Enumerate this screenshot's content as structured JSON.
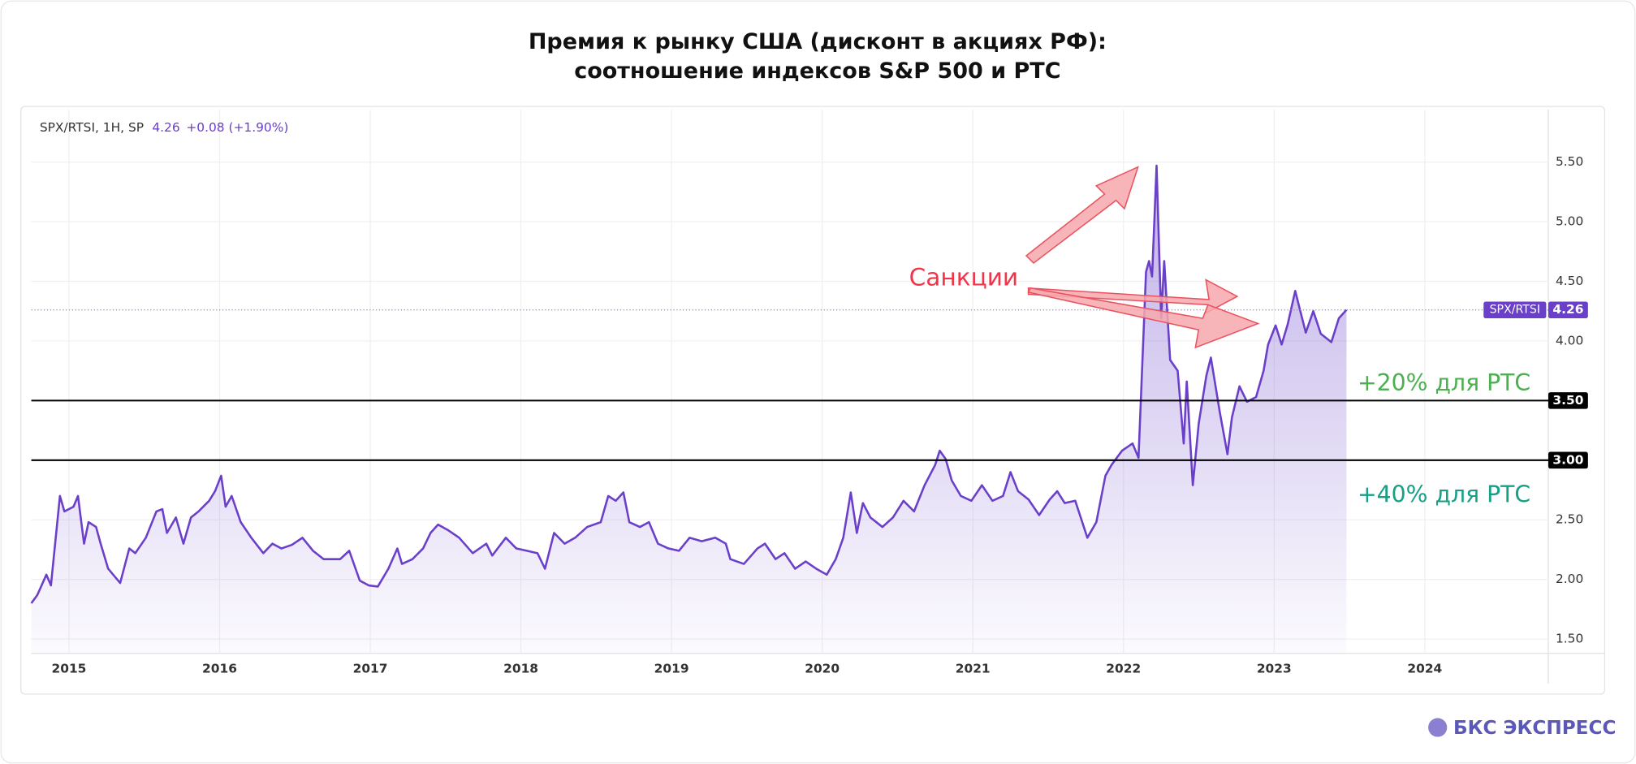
{
  "chart_data": {
    "type": "line",
    "title": [
      "Премия к рынку США (дисконт в акциях РФ):",
      "соотношение индексов S&P 500 и РТС"
    ],
    "header": {
      "symbol": "SPX/RTSI, 1H, SP",
      "value": 4.26,
      "change": "+0.08 (+1.90%)"
    },
    "x": [
      2014.75,
      2014.79,
      2014.85,
      2014.88,
      2014.94,
      2014.97,
      2015.03,
      2015.06,
      2015.1,
      2015.13,
      2015.18,
      2015.21,
      2015.26,
      2015.34,
      2015.4,
      2015.44,
      2015.51,
      2015.58,
      2015.62,
      2015.65,
      2015.71,
      2015.76,
      2015.81,
      2015.86,
      2015.93,
      2015.97,
      2016.01,
      2016.04,
      2016.08,
      2016.14,
      2016.21,
      2016.29,
      2016.35,
      2016.41,
      2016.48,
      2016.55,
      2016.62,
      2016.69,
      2016.8,
      2016.86,
      2016.93,
      2016.99,
      2017.05,
      2017.12,
      2017.18,
      2017.21,
      2017.28,
      2017.35,
      2017.4,
      2017.45,
      2017.52,
      2017.59,
      2017.68,
      2017.77,
      2017.81,
      2017.9,
      2017.97,
      2018.04,
      2018.11,
      2018.16,
      2018.22,
      2018.29,
      2018.36,
      2018.44,
      2018.53,
      2018.58,
      2018.63,
      2018.68,
      2018.72,
      2018.79,
      2018.85,
      2018.91,
      2018.98,
      2019.05,
      2019.12,
      2019.2,
      2019.29,
      2019.36,
      2019.39,
      2019.48,
      2019.57,
      2019.62,
      2019.69,
      2019.75,
      2019.82,
      2019.89,
      2019.96,
      2020.03,
      2020.09,
      2020.14,
      2020.19,
      2020.23,
      2020.27,
      2020.32,
      2020.4,
      2020.47,
      2020.54,
      2020.61,
      2020.68,
      2020.75,
      2020.78,
      2020.82,
      2020.86,
      2020.92,
      2020.99,
      2021.06,
      2021.13,
      2021.2,
      2021.25,
      2021.3,
      2021.37,
      2021.44,
      2021.51,
      2021.56,
      2021.61,
      2021.68,
      2021.76,
      2021.82,
      2021.88,
      2021.92,
      2021.99,
      2022.06,
      2022.1,
      2022.15,
      2022.17,
      2022.19,
      2022.22,
      2022.25,
      2022.27,
      2022.31,
      2022.36,
      2022.4,
      2022.42,
      2022.46,
      2022.5,
      2022.55,
      2022.58,
      2022.64,
      2022.69,
      2022.72,
      2022.77,
      2022.82,
      2022.88,
      2022.93,
      2022.96,
      2023.01,
      2023.05,
      2023.09,
      2023.14,
      2023.17,
      2023.21,
      2023.26,
      2023.31,
      2023.38,
      2023.43,
      2023.48
    ],
    "series": [
      {
        "name": "SPX/RTSI",
        "color": "#6a3fc9",
        "values": [
          1.8,
          1.87,
          2.04,
          1.95,
          2.7,
          2.57,
          2.61,
          2.7,
          2.3,
          2.48,
          2.44,
          2.3,
          2.09,
          1.97,
          2.26,
          2.22,
          2.35,
          2.57,
          2.59,
          2.39,
          2.52,
          2.3,
          2.52,
          2.57,
          2.66,
          2.74,
          2.87,
          2.61,
          2.7,
          2.48,
          2.35,
          2.22,
          2.3,
          2.26,
          2.29,
          2.35,
          2.24,
          2.17,
          2.17,
          2.24,
          1.99,
          1.95,
          1.94,
          2.09,
          2.26,
          2.13,
          2.17,
          2.26,
          2.39,
          2.46,
          2.41,
          2.35,
          2.22,
          2.3,
          2.2,
          2.35,
          2.26,
          2.24,
          2.22,
          2.09,
          2.39,
          2.3,
          2.35,
          2.44,
          2.48,
          2.7,
          2.66,
          2.73,
          2.48,
          2.44,
          2.48,
          2.3,
          2.26,
          2.24,
          2.35,
          2.32,
          2.35,
          2.3,
          2.17,
          2.13,
          2.26,
          2.3,
          2.17,
          2.22,
          2.09,
          2.15,
          2.09,
          2.04,
          2.17,
          2.35,
          2.73,
          2.39,
          2.64,
          2.52,
          2.44,
          2.52,
          2.66,
          2.57,
          2.79,
          2.96,
          3.08,
          3.01,
          2.83,
          2.7,
          2.66,
          2.79,
          2.66,
          2.7,
          2.9,
          2.74,
          2.67,
          2.54,
          2.67,
          2.74,
          2.64,
          2.66,
          2.35,
          2.48,
          2.87,
          2.96,
          3.08,
          3.14,
          3.02,
          4.58,
          4.67,
          4.54,
          5.47,
          4.19,
          4.67,
          3.84,
          3.75,
          3.14,
          3.66,
          2.79,
          3.31,
          3.71,
          3.86,
          3.4,
          3.05,
          3.36,
          3.62,
          3.49,
          3.53,
          3.75,
          3.97,
          4.13,
          3.97,
          4.14,
          4.42,
          4.27,
          4.07,
          4.25,
          4.06,
          3.99,
          4.19,
          4.26
        ]
      }
    ],
    "xlim": [
      2014.75,
      2024.82
    ],
    "xticks": [
      2015,
      2016,
      2017,
      2018,
      2019,
      2020,
      2021,
      2022,
      2023,
      2024
    ],
    "ylim": [
      1.38,
      5.94
    ],
    "yticks": [
      {
        "value": 1.5,
        "label": "1.50"
      },
      {
        "value": 2,
        "label": "2.00"
      },
      {
        "value": 2.5,
        "label": "2.50"
      },
      {
        "value": 3,
        "label": "3.00"
      },
      {
        "value": 3.5,
        "label": "3.50"
      },
      {
        "value": 4,
        "label": "4.00"
      },
      {
        "value": 4.5,
        "label": "4.50"
      },
      {
        "value": 5,
        "label": "5.00"
      },
      {
        "value": 5.5,
        "label": "5.50"
      }
    ],
    "grid": true,
    "hlines": [
      {
        "value": 3.5,
        "label": "3.50",
        "annotation": "+20% для РТС",
        "color": "#4caf50"
      },
      {
        "value": 3,
        "label": "3.00",
        "annotation": "+40% для РТС",
        "color": "#16a085"
      }
    ],
    "annotation": {
      "text": "Санкции",
      "color": "#f0354a"
    },
    "brand": "БКС ЭКСПРЕСС"
  }
}
